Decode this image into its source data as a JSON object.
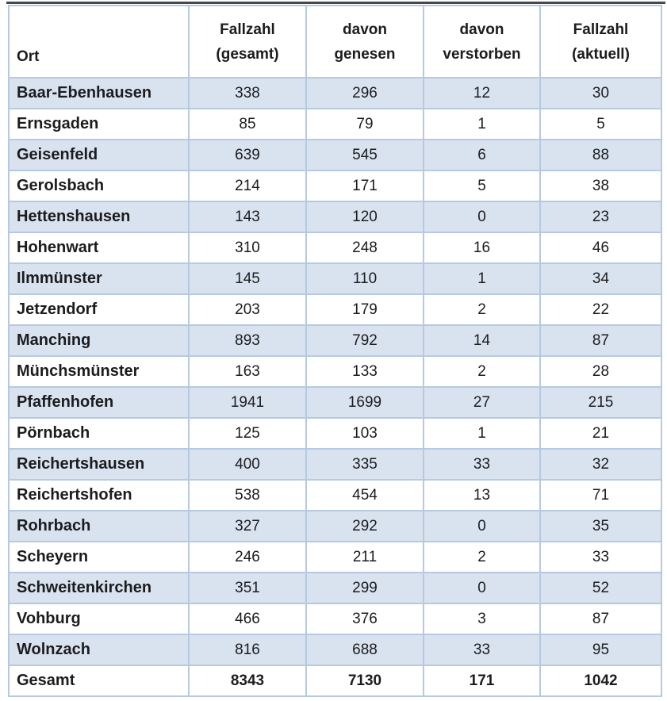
{
  "colors": {
    "stripe_blue": "#d9e3f0",
    "grid_border_blue": "#b7c9e1",
    "top_rule_dark": "#45484d",
    "text": "#1c1c1e",
    "background": "#ffffff"
  },
  "table": {
    "header": {
      "ort": "Ort",
      "gesamt": [
        "Fallzahl",
        "(gesamt)"
      ],
      "genesen": [
        "davon",
        "genesen"
      ],
      "verstorben": [
        "davon",
        "verstorben"
      ],
      "aktuell": [
        "Fallzahl",
        "(aktuell)"
      ]
    },
    "rows": [
      {
        "ort": "Baar-Ebenhausen",
        "gesamt": 338,
        "genesen": 296,
        "verstorben": 12,
        "aktuell": 30
      },
      {
        "ort": "Ernsgaden",
        "gesamt": 85,
        "genesen": 79,
        "verstorben": 1,
        "aktuell": 5
      },
      {
        "ort": "Geisenfeld",
        "gesamt": 639,
        "genesen": 545,
        "verstorben": 6,
        "aktuell": 88
      },
      {
        "ort": "Gerolsbach",
        "gesamt": 214,
        "genesen": 171,
        "verstorben": 5,
        "aktuell": 38
      },
      {
        "ort": "Hettenshausen",
        "gesamt": 143,
        "genesen": 120,
        "verstorben": 0,
        "aktuell": 23
      },
      {
        "ort": "Hohenwart",
        "gesamt": 310,
        "genesen": 248,
        "verstorben": 16,
        "aktuell": 46
      },
      {
        "ort": "Ilmmünster",
        "gesamt": 145,
        "genesen": 110,
        "verstorben": 1,
        "aktuell": 34
      },
      {
        "ort": "Jetzendorf",
        "gesamt": 203,
        "genesen": 179,
        "verstorben": 2,
        "aktuell": 22
      },
      {
        "ort": "Manching",
        "gesamt": 893,
        "genesen": 792,
        "verstorben": 14,
        "aktuell": 87
      },
      {
        "ort": "Münchsmünster",
        "gesamt": 163,
        "genesen": 133,
        "verstorben": 2,
        "aktuell": 28
      },
      {
        "ort": "Pfaffenhofen",
        "gesamt": 1941,
        "genesen": 1699,
        "verstorben": 27,
        "aktuell": 215
      },
      {
        "ort": "Pörnbach",
        "gesamt": 125,
        "genesen": 103,
        "verstorben": 1,
        "aktuell": 21
      },
      {
        "ort": "Reichertshausen",
        "gesamt": 400,
        "genesen": 335,
        "verstorben": 33,
        "aktuell": 32
      },
      {
        "ort": "Reichertshofen",
        "gesamt": 538,
        "genesen": 454,
        "verstorben": 13,
        "aktuell": 71
      },
      {
        "ort": "Rohrbach",
        "gesamt": 327,
        "genesen": 292,
        "verstorben": 0,
        "aktuell": 35
      },
      {
        "ort": "Scheyern",
        "gesamt": 246,
        "genesen": 211,
        "verstorben": 2,
        "aktuell": 33
      },
      {
        "ort": "Schweitenkirchen",
        "gesamt": 351,
        "genesen": 299,
        "verstorben": 0,
        "aktuell": 52
      },
      {
        "ort": "Vohburg",
        "gesamt": 466,
        "genesen": 376,
        "verstorben": 3,
        "aktuell": 87
      },
      {
        "ort": "Wolnzach",
        "gesamt": 816,
        "genesen": 688,
        "verstorben": 33,
        "aktuell": 95
      }
    ],
    "total": {
      "ort": "Gesamt",
      "gesamt": 8343,
      "genesen": 7130,
      "verstorben": 171,
      "aktuell": 1042
    }
  }
}
